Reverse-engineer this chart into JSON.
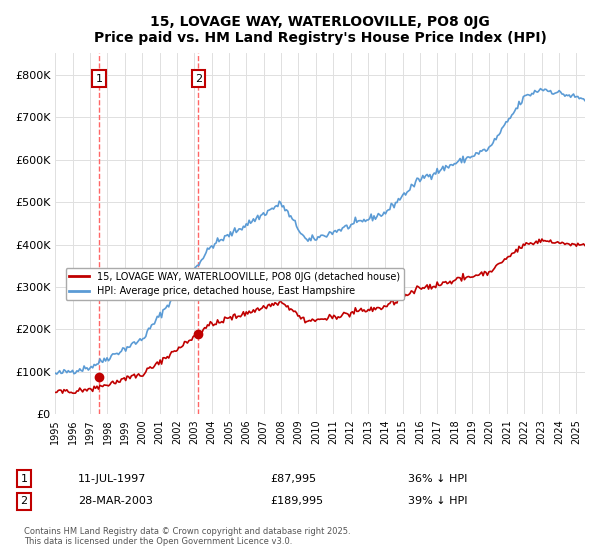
{
  "title": "15, LOVAGE WAY, WATERLOOVILLE, PO8 0JG",
  "subtitle": "Price paid vs. HM Land Registry's House Price Index (HPI)",
  "hpi_label": "HPI: Average price, detached house, East Hampshire",
  "property_label": "15, LOVAGE WAY, WATERLOOVILLE, PO8 0JG (detached house)",
  "hpi_color": "#5B9BD5",
  "property_color": "#C00000",
  "marker1_color": "#C00000",
  "marker2_color": "#C00000",
  "vline_color": "#FF6666",
  "annotation_box_color": "#C00000",
  "purchase1": {
    "date": "11-JUL-1997",
    "price": 87995,
    "pct": "36%",
    "direction": "↓",
    "label": "1"
  },
  "purchase2": {
    "date": "28-MAR-2003",
    "price": 189995,
    "pct": "39%",
    "direction": "↓",
    "label": "2"
  },
  "purchase1_x": 1997.53,
  "purchase1_y": 87995,
  "purchase2_x": 2003.24,
  "purchase2_y": 189995,
  "ylim": [
    0,
    850000
  ],
  "xlim": [
    1995,
    2025.5
  ],
  "yticks": [
    0,
    100000,
    200000,
    300000,
    400000,
    500000,
    600000,
    700000,
    800000
  ],
  "ytick_labels": [
    "£0",
    "£100K",
    "£200K",
    "£300K",
    "£400K",
    "£500K",
    "£600K",
    "£700K",
    "£800K"
  ],
  "xticks": [
    1995,
    1996,
    1997,
    1998,
    1999,
    2000,
    2001,
    2002,
    2003,
    2004,
    2005,
    2006,
    2007,
    2008,
    2009,
    2010,
    2011,
    2012,
    2013,
    2014,
    2015,
    2016,
    2017,
    2018,
    2019,
    2020,
    2021,
    2022,
    2023,
    2024,
    2025
  ],
  "footer": "Contains HM Land Registry data © Crown copyright and database right 2025.\nThis data is licensed under the Open Government Licence v3.0.",
  "background_color": "#FFFFFF",
  "grid_color": "#E0E0E0"
}
